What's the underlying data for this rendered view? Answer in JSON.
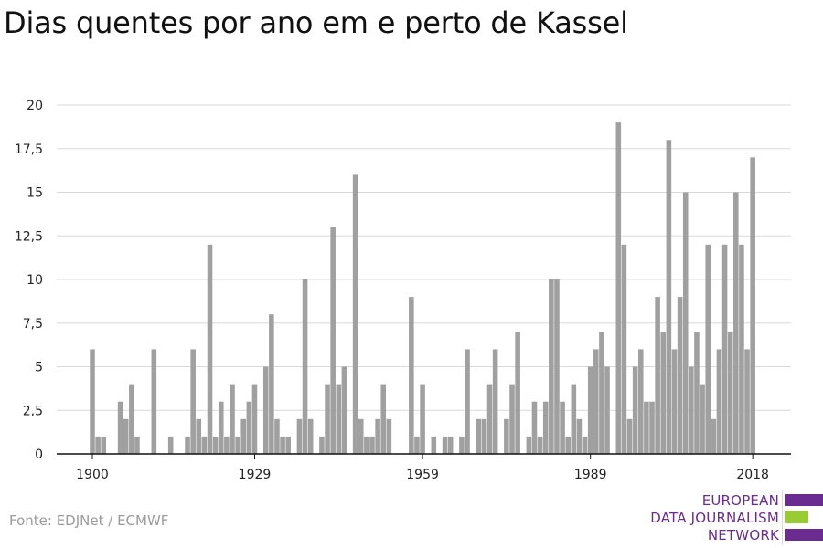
{
  "title": "Dias quentes por ano em e perto de Kassel",
  "source": "Fonte: EDJNet / ECMWF",
  "logo": {
    "lines": [
      "EUROPEAN",
      "DATA JOURNALISM",
      "NETWORK"
    ],
    "colors": {
      "purple": "#6b2c91",
      "green": "#99cc33"
    }
  },
  "colors": {
    "bar": "#a0a0a0",
    "grid": "#d9d9d9",
    "axis": "#111111"
  },
  "chart_data": {
    "type": "bar",
    "title": "Dias quentes por ano em e perto de Kassel",
    "xlabel": "",
    "ylabel": "",
    "ylim": [
      0,
      20
    ],
    "yticks": [
      0,
      2.5,
      5,
      7.5,
      10,
      12.5,
      15,
      17.5,
      20
    ],
    "ytick_labels": [
      "0",
      "2,5",
      "5",
      "7,5",
      "10",
      "12,5",
      "15",
      "17,5",
      "20"
    ],
    "xticks": [
      1900,
      1929,
      1959,
      1989,
      2018
    ],
    "xtick_labels": [
      "1900",
      "1929",
      "1959",
      "1989",
      "2018"
    ],
    "grid": true,
    "x_start": 1900,
    "x_end": 2018,
    "values": [
      6,
      1,
      1,
      0,
      0,
      3,
      2,
      4,
      1,
      0,
      0,
      6,
      0,
      0,
      1,
      0,
      0,
      1,
      6,
      2,
      1,
      12,
      1,
      3,
      1,
      4,
      1,
      2,
      3,
      4,
      0,
      5,
      8,
      2,
      1,
      1,
      0,
      2,
      10,
      2,
      0,
      1,
      4,
      13,
      4,
      5,
      0,
      16,
      2,
      1,
      1,
      2,
      4,
      2,
      0,
      0,
      0,
      9,
      1,
      4,
      0,
      1,
      0,
      1,
      1,
      0,
      1,
      6,
      0,
      2,
      2,
      4,
      6,
      0,
      2,
      4,
      7,
      0,
      1,
      3,
      1,
      3,
      10,
      10,
      3,
      1,
      4,
      2,
      1,
      5,
      6,
      7,
      5,
      0,
      19,
      12,
      2,
      5,
      6,
      3,
      3,
      9,
      7,
      18,
      6,
      9,
      15,
      5,
      7,
      4,
      12,
      2,
      6,
      12,
      7,
      15,
      12,
      6,
      17
    ]
  }
}
